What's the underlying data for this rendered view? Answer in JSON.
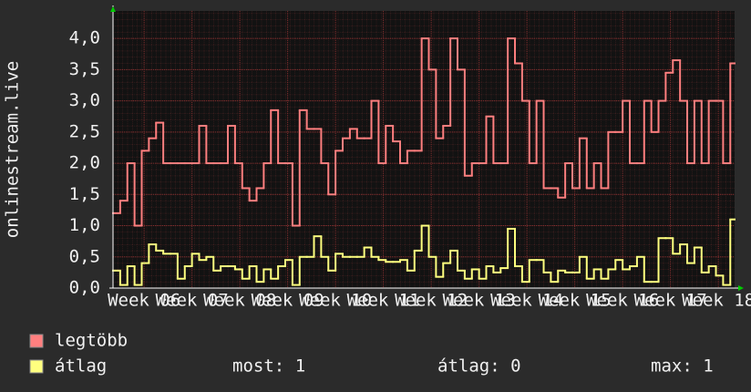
{
  "chart_data": {
    "type": "line",
    "step": true,
    "ylabel": "onlinestream.live",
    "xlim": [
      5.35,
      18.34
    ],
    "ylim": [
      0,
      4.44
    ],
    "yticks": [
      {
        "value": 0,
        "label": "0,0"
      },
      {
        "value": 0.5,
        "label": "0,5"
      },
      {
        "value": 1,
        "label": "1,0"
      },
      {
        "value": 1.5,
        "label": "1,5"
      },
      {
        "value": 2,
        "label": "2,0"
      },
      {
        "value": 2.5,
        "label": "2,5"
      },
      {
        "value": 3,
        "label": "3,0"
      },
      {
        "value": 3.5,
        "label": "3,5"
      },
      {
        "value": 4,
        "label": "4,0"
      }
    ],
    "xticks": [
      {
        "value": 6,
        "label": "Week 06"
      },
      {
        "value": 7,
        "label": "Week 07"
      },
      {
        "value": 8,
        "label": "Week 08"
      },
      {
        "value": 9,
        "label": "Week 09"
      },
      {
        "value": 10,
        "label": "Week 10"
      },
      {
        "value": 11,
        "label": "Week 11"
      },
      {
        "value": 12,
        "label": "Week 12"
      },
      {
        "value": 13,
        "label": "Week 13"
      },
      {
        "value": 14,
        "label": "Week 14"
      },
      {
        "value": 15,
        "label": "Week 15"
      },
      {
        "value": 16,
        "label": "Week 16"
      },
      {
        "value": 17,
        "label": "Week 17"
      },
      {
        "value": 18,
        "label": "Week 18"
      }
    ],
    "grid": true,
    "x": [
      5.35,
      5.5,
      5.65,
      5.8,
      5.95,
      6.1,
      6.25,
      6.4,
      6.55,
      6.7,
      6.85,
      7.0,
      7.15,
      7.3,
      7.45,
      7.6,
      7.75,
      7.9,
      8.05,
      8.2,
      8.35,
      8.5,
      8.65,
      8.8,
      8.95,
      9.1,
      9.25,
      9.4,
      9.55,
      9.7,
      9.85,
      10.0,
      10.15,
      10.3,
      10.45,
      10.6,
      10.75,
      10.9,
      11.05,
      11.2,
      11.35,
      11.5,
      11.65,
      11.8,
      11.95,
      12.1,
      12.25,
      12.4,
      12.55,
      12.7,
      12.85,
      13.0,
      13.15,
      13.3,
      13.45,
      13.6,
      13.75,
      13.9,
      14.05,
      14.2,
      14.35,
      14.5,
      14.65,
      14.8,
      14.95,
      15.1,
      15.25,
      15.4,
      15.55,
      15.7,
      15.85,
      16.0,
      16.15,
      16.3,
      16.45,
      16.6,
      16.75,
      16.9,
      17.05,
      17.2,
      17.35,
      17.5,
      17.65,
      17.8,
      17.95,
      18.1,
      18.25
    ],
    "series": [
      {
        "name": "legtöbb",
        "color": "#ff7f7f",
        "values": [
          1.2,
          1.4,
          2.0,
          1.0,
          2.2,
          2.4,
          2.65,
          2.0,
          2.0,
          2.0,
          2.0,
          2.0,
          2.6,
          2.0,
          2.0,
          2.0,
          2.6,
          2.0,
          1.6,
          1.4,
          1.6,
          2.0,
          2.85,
          2.0,
          2.0,
          1.0,
          2.85,
          2.55,
          2.55,
          2.0,
          1.5,
          2.2,
          2.4,
          2.55,
          2.4,
          2.4,
          3.0,
          2.0,
          2.6,
          2.35,
          2.0,
          2.2,
          2.2,
          4.0,
          3.5,
          2.4,
          2.6,
          4.0,
          3.5,
          1.8,
          2.0,
          2.0,
          2.75,
          2.0,
          2.0,
          4.0,
          3.6,
          3.0,
          2.0,
          3.0,
          1.6,
          1.6,
          1.45,
          2.0,
          1.6,
          2.4,
          1.6,
          2.0,
          1.6,
          2.5,
          2.5,
          3.0,
          2.0,
          2.0,
          3.0,
          2.5,
          3.0,
          3.45,
          3.65,
          3.0,
          2.0,
          3.0,
          2.0,
          3.0,
          3.0,
          2.0,
          3.6
        ]
      },
      {
        "name": "átlag",
        "color": "#ffff7f",
        "values": [
          0.28,
          0.05,
          0.35,
          0.05,
          0.4,
          0.7,
          0.6,
          0.55,
          0.55,
          0.15,
          0.35,
          0.55,
          0.45,
          0.5,
          0.28,
          0.35,
          0.35,
          0.3,
          0.15,
          0.35,
          0.1,
          0.3,
          0.15,
          0.35,
          0.45,
          0.05,
          0.5,
          0.5,
          0.83,
          0.5,
          0.28,
          0.55,
          0.5,
          0.5,
          0.5,
          0.65,
          0.5,
          0.45,
          0.42,
          0.42,
          0.45,
          0.28,
          0.6,
          1.0,
          0.5,
          0.18,
          0.4,
          0.6,
          0.28,
          0.15,
          0.3,
          0.15,
          0.35,
          0.25,
          0.32,
          0.95,
          0.35,
          0.1,
          0.45,
          0.45,
          0.25,
          0.1,
          0.28,
          0.25,
          0.25,
          0.5,
          0.15,
          0.3,
          0.15,
          0.3,
          0.45,
          0.3,
          0.35,
          0.5,
          0.1,
          0.1,
          0.8,
          0.8,
          0.55,
          0.7,
          0.4,
          0.65,
          0.25,
          0.35,
          0.2,
          0.05,
          1.1
        ]
      }
    ],
    "stats": [
      {
        "label": "most:",
        "value": 1
      },
      {
        "label": "átlag:",
        "value": 0
      },
      {
        "label": "max:",
        "value": 1
      }
    ]
  }
}
